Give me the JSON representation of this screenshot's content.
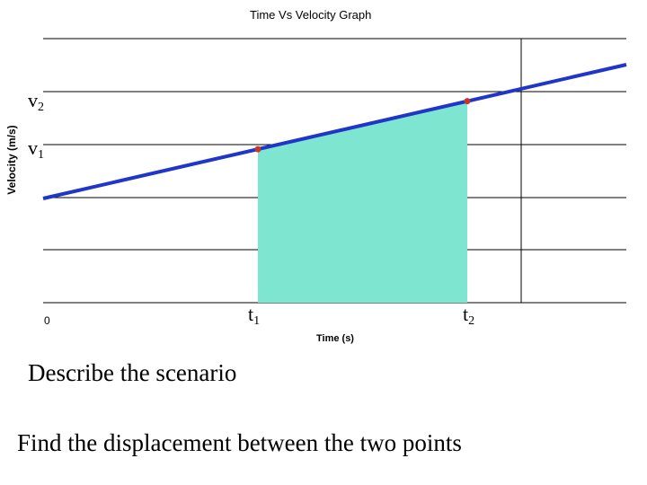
{
  "chart_data": {
    "type": "line",
    "title": "Time Vs Velocity Graph",
    "xlabel": "Time (s)",
    "ylabel": "Velocity (m/s)",
    "origin_label": "0",
    "grid": true,
    "legend": "none",
    "line_color": "#1f36c8",
    "fill_color": "#7ee5d0",
    "point_color": "#c0392b",
    "markers": {
      "v1": {
        "base": "v",
        "sub": "1"
      },
      "v2": {
        "base": "v",
        "sub": "2"
      },
      "t1": {
        "base": "t",
        "sub": "1"
      },
      "t2": {
        "base": "t",
        "sub": "2"
      }
    },
    "points": [
      {
        "name": "point-1",
        "x": "t1",
        "y": "v1"
      },
      {
        "name": "point-2",
        "x": "t2",
        "y": "v2"
      }
    ],
    "shaded_region": {
      "from": "t1",
      "to": "t2"
    }
  },
  "captions": {
    "line1": "Describe the scenario",
    "line2": "Find the displacement between the two points"
  }
}
